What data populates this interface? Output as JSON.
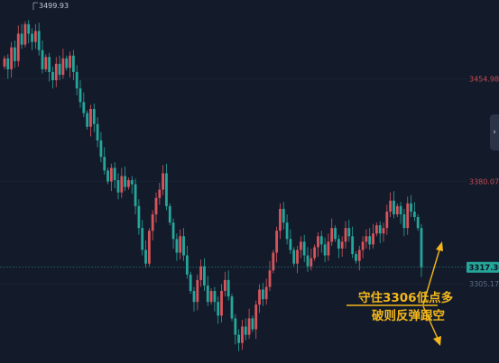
{
  "chart_data": {
    "type": "candlestick",
    "y_ticks": [
      {
        "value": 3454.98,
        "label": "3454.98"
      },
      {
        "value": 3380.07,
        "label": "3380.07"
      },
      {
        "value": 3305.17,
        "label": "3305.17"
      }
    ],
    "high_label": "3499.93",
    "current_price": "3317.30",
    "ylim": [
      3250,
      3510
    ],
    "colors": {
      "up": "#d8545c",
      "down": "#26a69a",
      "note": "#f3b71b",
      "current": "#26a69a"
    },
    "annotation": {
      "line1": "守住3306低点多",
      "line2": "破则反弹跟空"
    },
    "closes": [
      3470,
      3462,
      3478,
      3468,
      3488,
      3480,
      3495,
      3488,
      3482,
      3490,
      3476,
      3462,
      3471,
      3460,
      3454,
      3466,
      3458,
      3470,
      3463,
      3472,
      3460,
      3448,
      3438,
      3430,
      3420,
      3433,
      3422,
      3410,
      3398,
      3388,
      3380,
      3390,
      3381,
      3372,
      3384,
      3376,
      3381,
      3378,
      3362,
      3346,
      3330,
      3320,
      3344,
      3356,
      3368,
      3374,
      3386,
      3362,
      3350,
      3338,
      3328,
      3340,
      3326,
      3312,
      3300,
      3292,
      3308,
      3318,
      3304,
      3292,
      3300,
      3292,
      3282,
      3300,
      3308,
      3296,
      3280,
      3268,
      3262,
      3274,
      3268,
      3280,
      3272,
      3290,
      3301,
      3294,
      3303,
      3315,
      3328,
      3344,
      3360,
      3350,
      3338,
      3330,
      3320,
      3330,
      3336,
      3326,
      3318,
      3324,
      3332,
      3340,
      3334,
      3326,
      3336,
      3346,
      3338,
      3331,
      3336,
      3346,
      3340,
      3327,
      3322,
      3330,
      3336,
      3340,
      3334,
      3342,
      3348,
      3342,
      3346,
      3358,
      3366,
      3356,
      3362,
      3356,
      3346,
      3364,
      3358,
      3354,
      3346,
      3317.3
    ]
  }
}
